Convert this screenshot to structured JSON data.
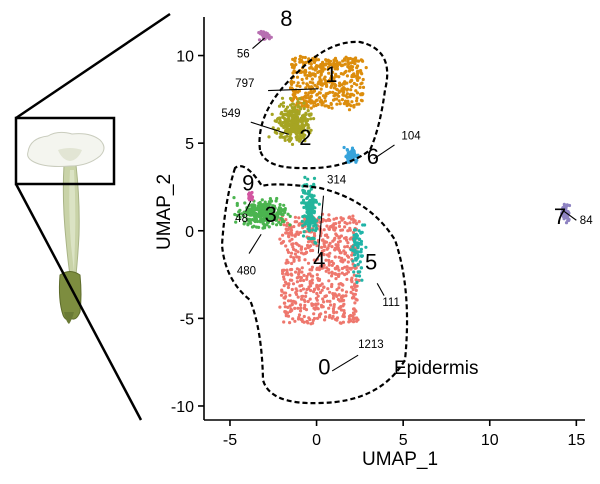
{
  "chart_data": {
    "type": "scatter",
    "xlabel": "UMAP_1",
    "ylabel": "UMAP_2",
    "xlim": [
      -6.5,
      15.5
    ],
    "ylim": [
      -10.8,
      12.2
    ],
    "xticks": [
      -5,
      0,
      5,
      10,
      15
    ],
    "yticks": [
      -10,
      -5,
      0,
      5,
      10
    ],
    "grid": false,
    "annotation": "Epidermis",
    "clusters": [
      {
        "id": "0",
        "count": "1213",
        "color": "#EE776D",
        "center": [
          0.2,
          -2.2
        ]
      },
      {
        "id": "1",
        "count": "797",
        "color": "#DC8D0C",
        "center": [
          0.6,
          8.5
        ]
      },
      {
        "id": "2",
        "count": "549",
        "color": "#A6A422",
        "center": [
          -1.3,
          6.2
        ]
      },
      {
        "id": "3",
        "count": "480",
        "color": "#4BB44F",
        "center": [
          -3.0,
          1.0
        ]
      },
      {
        "id": "4",
        "count": "314",
        "color": "#23B59C",
        "center": [
          -0.4,
          1.2
        ]
      },
      {
        "id": "5",
        "count": "111",
        "color": "#20B4A8",
        "center": [
          2.4,
          -1.0
        ]
      },
      {
        "id": "6",
        "count": "104",
        "color": "#36A3DB",
        "center": [
          2.0,
          4.3
        ]
      },
      {
        "id": "7",
        "count": "84",
        "color": "#8E83C2",
        "center": [
          14.4,
          1.0
        ]
      },
      {
        "id": "8",
        "count": "56",
        "color": "#B76FB1",
        "center": [
          -3.0,
          11.2
        ]
      },
      {
        "id": "9",
        "count": "48",
        "color": "#D255A0",
        "center": [
          -3.8,
          2.0
        ]
      }
    ],
    "polygons": {
      "x0": [
        -0.2,
        -5,
        0.4,
        -5.8,
        -4.3,
        2.9,
        -8.9,
        5.4,
        -8.3,
        5.5,
        -5.5,
        4.3,
        -4.3,
        2.0,
        -5.8,
        -0.7,
        -5,
        -1.8,
        -2.1,
        -2.7,
        -2.6,
        -0.9,
        -5.2,
        -0.2
      ],
      "ids": [
        0,
        5,
        4,
        3
      ]
    }
  }
}
